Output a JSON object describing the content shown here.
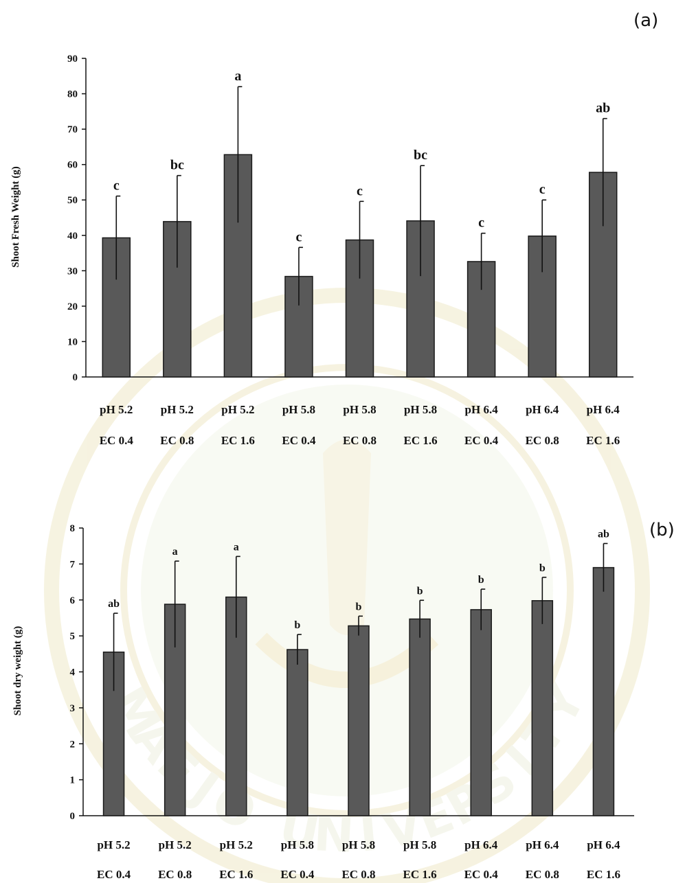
{
  "chart_data": [
    {
      "panel_label": "(a)",
      "type": "bar",
      "ylabel": "Shoot Fresh Weight (g)",
      "ylim": [
        0,
        90
      ],
      "yticks": [
        "0",
        "10",
        "20",
        "30",
        "40",
        "50",
        "60",
        "70",
        "80",
        "90"
      ],
      "categories": [
        [
          "pH 5.2",
          "EC 0.4"
        ],
        [
          "pH 5.2",
          "EC 0.8"
        ],
        [
          "pH 5.2",
          "EC 1.6"
        ],
        [
          "pH 5.8",
          "EC 0.4"
        ],
        [
          "pH 5.8",
          "EC 0.8"
        ],
        [
          "pH 5.8",
          "EC 1.6"
        ],
        [
          "pH 6.4",
          "EC 0.4"
        ],
        [
          "pH 6.4",
          "EC 0.8"
        ],
        [
          "pH 6.4",
          "EC 1.6"
        ]
      ],
      "values": [
        39.3,
        43.9,
        62.8,
        28.4,
        38.7,
        44.1,
        32.6,
        39.8,
        57.8
      ],
      "errors": [
        11.8,
        13.0,
        19.2,
        8.2,
        10.9,
        15.6,
        8.0,
        10.2,
        15.2
      ],
      "letters": [
        "c",
        "bc",
        "a",
        "c",
        "c",
        "bc",
        "c",
        "c",
        "ab"
      ],
      "grid": false,
      "legend": "none"
    },
    {
      "panel_label": "(b)",
      "type": "bar",
      "ylabel": "Shoot dry weight (g)",
      "ylim": [
        0,
        8
      ],
      "yticks": [
        "0",
        "1",
        "2",
        "3",
        "4",
        "5",
        "6",
        "7",
        "8"
      ],
      "categories": [
        [
          "pH 5.2",
          "EC 0.4"
        ],
        [
          "pH 5.2",
          "EC 0.8"
        ],
        [
          "pH 5.2",
          "EC 1.6"
        ],
        [
          "pH 5.8",
          "EC 0.4"
        ],
        [
          "pH 5.8",
          "EC 0.8"
        ],
        [
          "pH 5.8",
          "EC 1.6"
        ],
        [
          "pH 6.4",
          "EC 0.4"
        ],
        [
          "pH 6.4",
          "EC 0.8"
        ],
        [
          "pH 6.4",
          "EC 1.6"
        ]
      ],
      "values": [
        4.55,
        5.88,
        6.08,
        4.62,
        5.28,
        5.47,
        5.73,
        5.98,
        6.9
      ],
      "errors": [
        1.08,
        1.2,
        1.13,
        0.42,
        0.27,
        0.52,
        0.57,
        0.65,
        0.67
      ],
      "letters": [
        "ab",
        "a",
        "a",
        "b",
        "b",
        "b",
        "b",
        "b",
        "ab"
      ],
      "grid": false,
      "legend": "none"
    }
  ],
  "watermark": {
    "text": "MAEJO UNIVERSITY",
    "logo": "university-seal-icon",
    "color": "#e6dca0"
  }
}
